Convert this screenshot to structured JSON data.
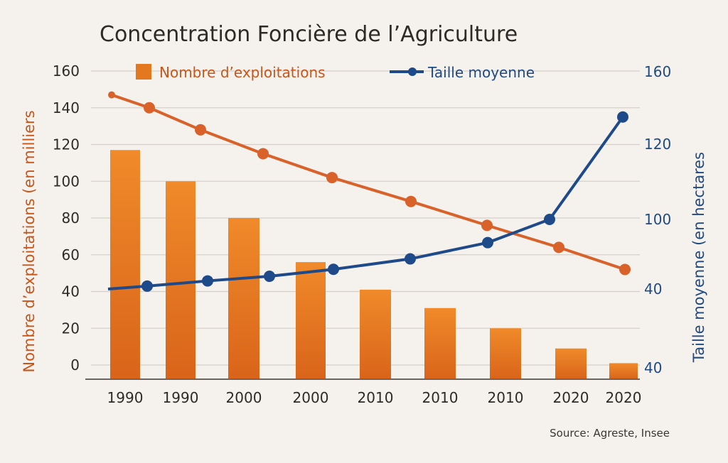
{
  "chart_data": {
    "type": "bar+line",
    "title": "Concentration Foncière de l’Agriculture",
    "categories": [
      "1990",
      "1990",
      "2000",
      "2000",
      "2010",
      "2010",
      "2010",
      "2020",
      "2020"
    ],
    "bar_series": {
      "name": "Nombre d’exploitations",
      "values": [
        117,
        100,
        80,
        56,
        41,
        31,
        20,
        9,
        1
      ],
      "color": "#e4781f"
    },
    "line_series_left": {
      "values": [
        147,
        140,
        128,
        115,
        102,
        89,
        76,
        64,
        52
      ],
      "color": "#d9622a"
    },
    "line_series_right": {
      "name": "Taille moyenne",
      "values": [
        40,
        42.5,
        47,
        51,
        57,
        66,
        80,
        100,
        135
      ],
      "color": "#1f4a8a"
    },
    "y_left": {
      "label": "Nombre d’exploitations (en milliers",
      "ticks": [
        "160",
        "140",
        "120",
        "100",
        "80",
        "60",
        "40",
        "20",
        "0"
      ],
      "range": [
        0,
        160
      ]
    },
    "y_right": {
      "label": "Taille moyenne (en hectares",
      "ticks": [
        "160",
        "120",
        "100",
        "40",
        "40"
      ]
    },
    "grid": true,
    "legend_position": "top"
  },
  "source": "Source: Agreste, Insee"
}
